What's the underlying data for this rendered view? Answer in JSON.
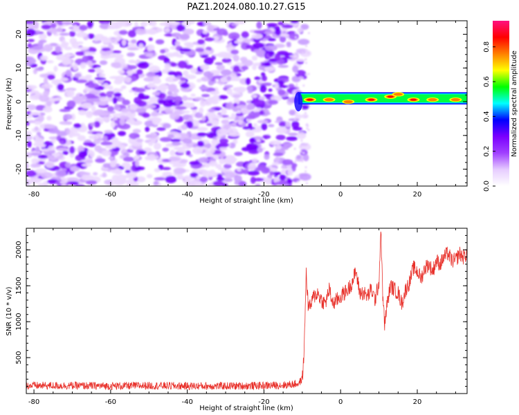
{
  "title": "PAZ1.2024.080.10.27.G15",
  "chart_data": [
    {
      "type": "heatmap",
      "xlabel": "Height of straight line (km)",
      "ylabel": "Frequency (Hz)",
      "xlim": [
        -82,
        33
      ],
      "ylim": [
        -25,
        24
      ],
      "xticks": [
        -80,
        -60,
        -40,
        -20,
        0,
        20
      ],
      "yticks": [
        -20,
        -10,
        0,
        10,
        20
      ],
      "grid": false,
      "transition_height_km": -11,
      "signal_band_hz": [
        0,
        2
      ],
      "colorbar": {
        "label": "Normalized spectral amplitude",
        "range": [
          0,
          0.95
        ],
        "ticks": [
          0.0,
          0.2,
          0.4,
          0.6,
          0.8
        ],
        "tick_labels": [
          "0.0",
          "0.2",
          "0.4",
          "0.6",
          "0.8"
        ],
        "colors": [
          "#ffffff",
          "#e6ccff",
          "#a040ff",
          "#7a00ff",
          "#0000ff",
          "#00ffff",
          "#00ff00",
          "#ffff00",
          "#ff8000",
          "#ff0000",
          "#ff1080"
        ]
      },
      "hotspots": [
        {
          "x": -8,
          "y": 0.6,
          "amplitude": 0.85
        },
        {
          "x": -3,
          "y": 0.6,
          "amplitude": 0.8
        },
        {
          "x": 2,
          "y": 0,
          "amplitude": 0.75
        },
        {
          "x": 8,
          "y": 0.6,
          "amplitude": 0.85
        },
        {
          "x": 13,
          "y": 1.5,
          "amplitude": 0.85
        },
        {
          "x": 15,
          "y": 2.2,
          "amplitude": 0.8
        },
        {
          "x": 19,
          "y": 0.6,
          "amplitude": 0.85
        },
        {
          "x": 24,
          "y": 0.6,
          "amplitude": 0.75
        },
        {
          "x": 30,
          "y": 0.6,
          "amplitude": 0.75
        }
      ]
    },
    {
      "type": "line",
      "xlabel": "Height of straight line (km)",
      "ylabel": "SNR (10 * v/v)",
      "xlim": [
        -82,
        33
      ],
      "ylim": [
        0,
        2300
      ],
      "xticks": [
        -80,
        -60,
        -40,
        -20,
        0,
        20
      ],
      "yticks": [
        500,
        1000,
        1500,
        2000
      ],
      "grid": false,
      "series": [
        {
          "color": "#e8302a",
          "x": [
            -82,
            -70,
            -60,
            -50,
            -40,
            -30,
            -20,
            -14,
            -11,
            -10,
            -9.5,
            -9,
            -8.5,
            -8,
            -7,
            -6,
            -5,
            -4,
            -3,
            -2,
            -1,
            0,
            1,
            2,
            3,
            4,
            5,
            6,
            7,
            8,
            9,
            10,
            10.5,
            11,
            11.5,
            12,
            13,
            14,
            15,
            16,
            17,
            18,
            19,
            20,
            21,
            22,
            23,
            24,
            25,
            26,
            27,
            28,
            29,
            30,
            31,
            32,
            33
          ],
          "y": [
            110,
            110,
            105,
            110,
            105,
            105,
            110,
            120,
            140,
            200,
            600,
            1700,
            1250,
            1200,
            1350,
            1400,
            1300,
            1250,
            1450,
            1250,
            1300,
            1350,
            1400,
            1450,
            1550,
            1700,
            1400,
            1400,
            1350,
            1450,
            1300,
            1550,
            2300,
            1350,
            950,
            1200,
            1500,
            1450,
            1400,
            1250,
            1450,
            1550,
            1750,
            1700,
            1600,
            1750,
            1800,
            1700,
            1850,
            1800,
            1900,
            1950,
            1850,
            1850,
            1950,
            1900,
            1950
          ]
        }
      ]
    }
  ]
}
